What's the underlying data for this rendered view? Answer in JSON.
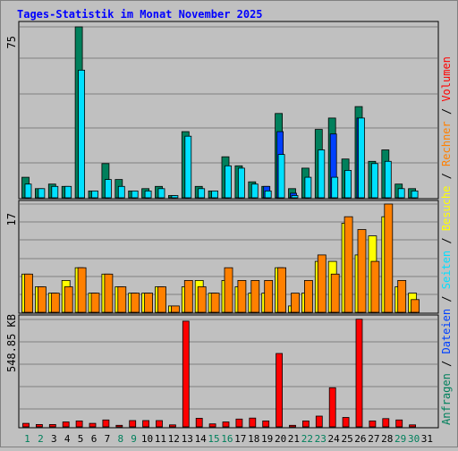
{
  "title": "Tages-Statistik im Monat November 2025",
  "colors": {
    "title": "#0000ff",
    "background": "#c0c0c0",
    "anfragen": "#00805c",
    "dateien": "#0040ff",
    "seiten": "#00e0ff",
    "besuche": "#ffff00",
    "rechner": "#ff8000",
    "volumen": "#ff0000",
    "weekend_day": "#00805c",
    "weekday": "#000000"
  },
  "chart_data": [
    {
      "type": "bar",
      "panel": "top",
      "ymax_label": "75",
      "ylim": [
        0,
        75
      ],
      "categories": [
        "1",
        "2",
        "3",
        "4",
        "5",
        "6",
        "7",
        "8",
        "9",
        "10",
        "11",
        "12",
        "13",
        "14",
        "15",
        "16",
        "17",
        "18",
        "19",
        "20",
        "21",
        "22",
        "23",
        "24",
        "25",
        "26",
        "27",
        "28",
        "29",
        "30",
        "31"
      ],
      "series": [
        {
          "name": "Anfragen",
          "values": [
            9,
            4,
            6,
            5,
            75,
            3,
            15,
            8,
            3,
            4,
            5,
            1,
            29,
            5,
            3,
            18,
            14,
            7,
            5,
            37,
            4,
            13,
            30,
            35,
            17,
            40,
            16,
            21,
            6,
            4,
            0
          ]
        },
        {
          "name": "Dateien",
          "values": [
            0,
            0,
            0,
            0,
            0,
            0,
            0,
            0,
            0,
            0,
            0,
            0,
            0,
            0,
            0,
            0,
            0,
            0,
            5,
            29,
            2,
            0,
            0,
            28,
            0,
            35,
            0,
            0,
            0,
            0,
            0
          ]
        },
        {
          "name": "Seiten",
          "values": [
            6,
            4,
            5,
            5,
            56,
            3,
            8,
            5,
            3,
            3,
            4,
            1,
            27,
            4,
            3,
            14,
            13,
            6,
            3,
            19,
            1,
            9,
            21,
            9,
            12,
            35,
            15,
            16,
            4,
            3,
            0
          ]
        }
      ]
    },
    {
      "type": "bar",
      "panel": "middle",
      "ymax_label": "17",
      "ylim": [
        0,
        17
      ],
      "categories": [
        "1",
        "2",
        "3",
        "4",
        "5",
        "6",
        "7",
        "8",
        "9",
        "10",
        "11",
        "12",
        "13",
        "14",
        "15",
        "16",
        "17",
        "18",
        "19",
        "20",
        "21",
        "22",
        "23",
        "24",
        "25",
        "26",
        "27",
        "28",
        "29",
        "30",
        "31"
      ],
      "series": [
        {
          "name": "Besuche",
          "values": [
            6,
            4,
            3,
            5,
            7,
            3,
            6,
            4,
            3,
            3,
            4,
            1,
            4,
            5,
            3,
            5,
            4,
            3,
            3,
            7,
            1,
            3,
            8,
            8,
            14,
            9,
            12,
            15,
            4,
            3,
            0
          ]
        },
        {
          "name": "Rechner",
          "values": [
            6,
            4,
            3,
            4,
            7,
            3,
            6,
            4,
            3,
            3,
            4,
            1,
            5,
            4,
            3,
            7,
            5,
            5,
            5,
            7,
            3,
            5,
            9,
            6,
            15,
            13,
            8,
            17,
            5,
            2,
            0
          ]
        }
      ]
    },
    {
      "type": "bar",
      "panel": "bottom",
      "ymax_label": "548.85 KB",
      "ylabel": "548.85 KB",
      "ylim": [
        0,
        548.85
      ],
      "categories": [
        "1",
        "2",
        "3",
        "4",
        "5",
        "6",
        "7",
        "8",
        "9",
        "10",
        "11",
        "12",
        "13",
        "14",
        "15",
        "16",
        "17",
        "18",
        "19",
        "20",
        "21",
        "22",
        "23",
        "24",
        "25",
        "26",
        "27",
        "28",
        "29",
        "30",
        "31"
      ],
      "series": [
        {
          "name": "Volumen",
          "values": [
            18,
            12,
            12,
            25,
            30,
            18,
            35,
            8,
            32,
            32,
            32,
            10,
            540,
            44,
            15,
            25,
            40,
            45,
            30,
            375,
            8,
            30,
            55,
            200,
            48,
            550,
            30,
            42,
            35,
            10,
            0
          ]
        }
      ]
    }
  ],
  "right_legend": [
    {
      "text": "Anfragen",
      "color": "#00805c"
    },
    {
      "text": " / ",
      "color": "#000000"
    },
    {
      "text": "Dateien",
      "color": "#0040ff"
    },
    {
      "text": " / ",
      "color": "#000000"
    },
    {
      "text": "Seiten",
      "color": "#00e0ff"
    },
    {
      "text": " / ",
      "color": "#000000"
    },
    {
      "text": "Besuche",
      "color": "#ffff00"
    },
    {
      "text": " / ",
      "color": "#000000"
    },
    {
      "text": "Rechner",
      "color": "#ff8000"
    },
    {
      "text": " / ",
      "color": "#000000"
    },
    {
      "text": "Volumen",
      "color": "#ff0000"
    }
  ],
  "weekend_days": [
    "1",
    "2",
    "8",
    "9",
    "15",
    "16",
    "22",
    "23",
    "29",
    "30"
  ]
}
